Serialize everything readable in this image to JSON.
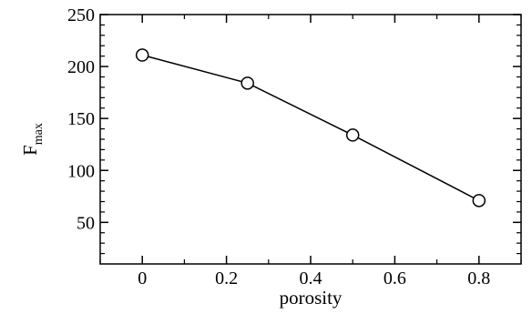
{
  "chart_data": {
    "type": "line",
    "x": [
      0,
      0.25,
      0.5,
      0.8
    ],
    "y": [
      211,
      184,
      134,
      71
    ],
    "marker": "open-circle",
    "line_color": "#000000",
    "xlabel": "porosity",
    "ylabel_main": "F",
    "ylabel_sub": "max",
    "xlim": [
      -0.1,
      0.9
    ],
    "ylim": [
      10,
      250
    ],
    "xticks": [
      0,
      0.2,
      0.4,
      0.6,
      0.8
    ],
    "xtick_labels": [
      "0",
      "0.2",
      "0.4",
      "0.6",
      "0.8"
    ],
    "yticks": [
      50,
      100,
      150,
      200,
      250
    ],
    "ytick_labels": [
      "50",
      "100",
      "150",
      "200",
      "250"
    ],
    "grid": false
  }
}
